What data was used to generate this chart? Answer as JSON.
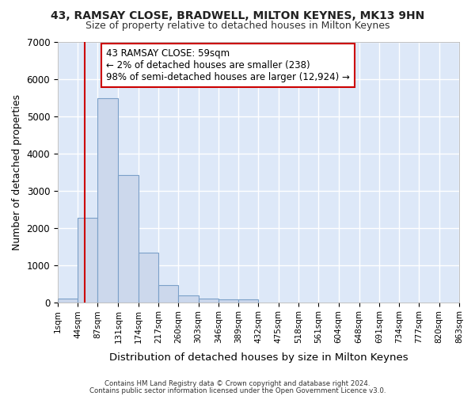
{
  "title": "43, RAMSAY CLOSE, BRADWELL, MILTON KEYNES, MK13 9HN",
  "subtitle": "Size of property relative to detached houses in Milton Keynes",
  "xlabel": "Distribution of detached houses by size in Milton Keynes",
  "ylabel": "Number of detached properties",
  "bar_color": "#ccd8ec",
  "bar_edge_color": "#7ba0c8",
  "background_color": "#dde8f8",
  "grid_color": "#ffffff",
  "bin_edges": [
    1,
    44,
    87,
    131,
    174,
    217,
    260,
    303,
    346,
    389,
    432,
    475,
    518,
    561,
    604,
    648,
    691,
    734,
    777,
    820,
    863
  ],
  "bar_heights": [
    100,
    2270,
    5470,
    3420,
    1330,
    460,
    175,
    105,
    80,
    65,
    0,
    0,
    0,
    0,
    0,
    0,
    0,
    0,
    0,
    0
  ],
  "tick_labels": [
    "1sqm",
    "44sqm",
    "87sqm",
    "131sqm",
    "174sqm",
    "217sqm",
    "260sqm",
    "303sqm",
    "346sqm",
    "389sqm",
    "432sqm",
    "475sqm",
    "518sqm",
    "561sqm",
    "604sqm",
    "648sqm",
    "691sqm",
    "734sqm",
    "777sqm",
    "820sqm",
    "863sqm"
  ],
  "ylim": [
    0,
    7000
  ],
  "yticks": [
    0,
    1000,
    2000,
    3000,
    4000,
    5000,
    6000,
    7000
  ],
  "property_size": 59,
  "red_line_color": "#cc0000",
  "annotation_line1": "43 RAMSAY CLOSE: 59sqm",
  "annotation_line2": "← 2% of detached houses are smaller (238)",
  "annotation_line3": "98% of semi-detached houses are larger (12,924) →",
  "annotation_box_color": "#ffffff",
  "annotation_border_color": "#cc0000",
  "footer_text1": "Contains HM Land Registry data © Crown copyright and database right 2024.",
  "footer_text2": "Contains public sector information licensed under the Open Government Licence v3.0."
}
